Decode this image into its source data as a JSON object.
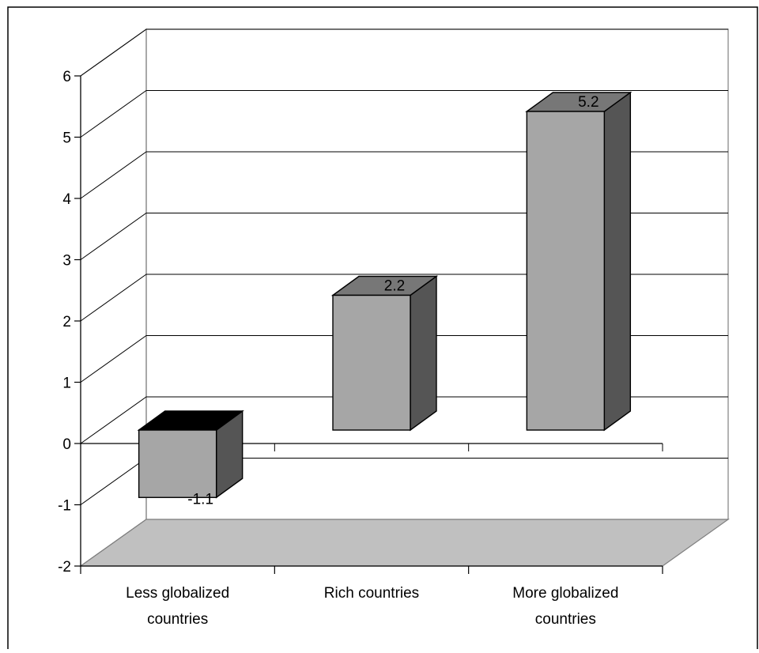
{
  "chart_data": {
    "type": "bar",
    "title": "",
    "xlabel": "",
    "ylabel": "",
    "categories": [
      [
        "Less globalized",
        "countries"
      ],
      [
        "Rich countries"
      ],
      [
        "More globalized",
        "countries"
      ]
    ],
    "values": [
      -1.1,
      2.2,
      5.2
    ],
    "data_labels": [
      "-1.1",
      "2.2",
      "5.2"
    ],
    "ylim": [
      -2,
      6
    ],
    "yticks": [
      -2,
      -1,
      0,
      1,
      2,
      3,
      4,
      5,
      6
    ],
    "grid": true,
    "style": "3d-column",
    "colors": {
      "bar_front": "#a6a6a6",
      "bar_side": "#555555",
      "bar_top": "#777777",
      "bar_top_negative": "#000000",
      "floor": "#c0c0c0"
    }
  }
}
